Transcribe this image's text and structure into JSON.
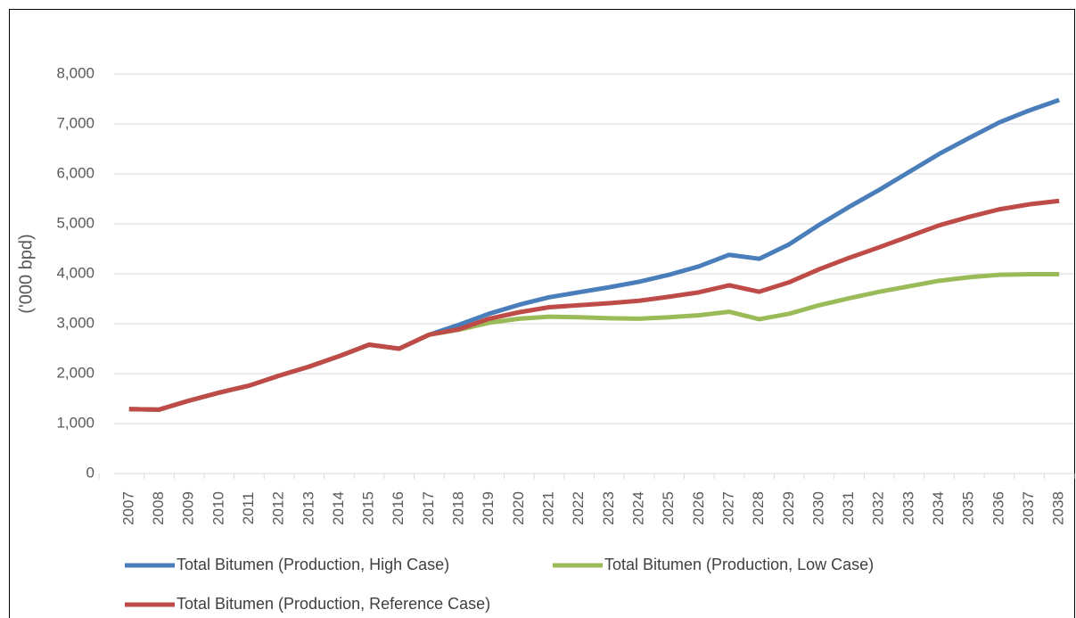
{
  "chart_data": {
    "type": "line",
    "y_axis_label": "('000 bpd)",
    "categories": [
      "2007",
      "2008",
      "2009",
      "2010",
      "2011",
      "2012",
      "2013",
      "2014",
      "2015",
      "2016",
      "2017",
      "2018",
      "2019",
      "2020",
      "2021",
      "2022",
      "2023",
      "2024",
      "2025",
      "2026",
      "2027",
      "2028",
      "2029",
      "2030",
      "2031",
      "2032",
      "2033",
      "2034",
      "2035",
      "2036",
      "2037",
      "2038"
    ],
    "series": [
      {
        "name": "Total Bitumen (Production, High Case)",
        "color": "#4a7ebb",
        "values": [
          1290,
          1280,
          1460,
          1620,
          1760,
          1960,
          2140,
          2350,
          2580,
          2500,
          2780,
          2980,
          3200,
          3380,
          3530,
          3630,
          3730,
          3840,
          3980,
          4150,
          4380,
          4300,
          4590,
          4980,
          5340,
          5680,
          6040,
          6400,
          6720,
          7030,
          7270,
          7480
        ]
      },
      {
        "name": "Total Bitumen (Production, Low Case)",
        "color": "#9bbb59",
        "values": [
          1290,
          1280,
          1460,
          1620,
          1760,
          1960,
          2140,
          2350,
          2580,
          2500,
          2780,
          2880,
          3020,
          3100,
          3140,
          3130,
          3110,
          3100,
          3130,
          3170,
          3240,
          3090,
          3200,
          3370,
          3510,
          3640,
          3750,
          3860,
          3930,
          3980,
          3990,
          3990
        ]
      },
      {
        "name": "Total Bitumen (Production, Reference Case)",
        "color": "#be4b48",
        "values": [
          1290,
          1280,
          1460,
          1620,
          1760,
          1960,
          2140,
          2350,
          2580,
          2500,
          2780,
          2890,
          3100,
          3230,
          3330,
          3370,
          3410,
          3460,
          3540,
          3630,
          3770,
          3640,
          3830,
          4090,
          4320,
          4530,
          4750,
          4970,
          5140,
          5290,
          5390,
          5460
        ]
      }
    ],
    "ylim": [
      0,
      8000
    ],
    "yticks": [
      0,
      {
        "value": 1000,
        "label": "1,000"
      },
      {
        "value": 2000,
        "label": "2,000"
      },
      {
        "value": 3000,
        "label": "3,000"
      },
      {
        "value": 4000,
        "label": "4,000"
      },
      {
        "value": 5000,
        "label": "5,000"
      },
      {
        "value": 6000,
        "label": "6,000"
      },
      {
        "value": 7000,
        "label": "7,000"
      },
      {
        "value": 8000,
        "label": "8,000"
      }
    ],
    "grid": true,
    "legend": "bottom"
  }
}
